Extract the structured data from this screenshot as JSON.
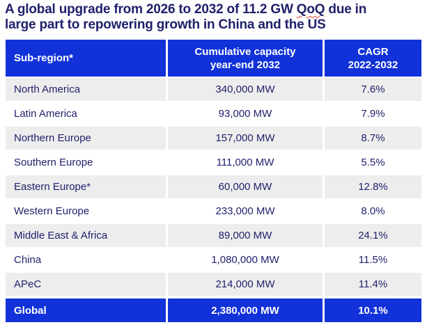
{
  "title": {
    "line1_before": "A global upgrade from 2026 to 2032 of 11.2 GW ",
    "line1_spellchecked_word": "QoQ",
    "line1_after": " due in",
    "line2": "large part to repowering growth in China and the US"
  },
  "table": {
    "headers": [
      {
        "label": "Sub-region*"
      },
      {
        "label": "Cumulative capacity\nyear-end 2032"
      },
      {
        "label": "CAGR\n2022-2032"
      }
    ],
    "rows": [
      {
        "region": "North America",
        "capacity": "340,000 MW",
        "cagr": "7.6%"
      },
      {
        "region": "Latin America",
        "capacity": "93,000 MW",
        "cagr": "7.9%"
      },
      {
        "region": "Northern Europe",
        "capacity": "157,000 MW",
        "cagr": "8.7%"
      },
      {
        "region": "Southern Europe",
        "capacity": "111,000 MW",
        "cagr": "5.5%"
      },
      {
        "region": "Eastern Europe*",
        "capacity": "60,000 MW",
        "cagr": "12.8%"
      },
      {
        "region": "Western Europe",
        "capacity": "233,000 MW",
        "cagr": "8.0%"
      },
      {
        "region": "Middle East & Africa",
        "capacity": "89,000 MW",
        "cagr": "24.1%"
      },
      {
        "region": "China",
        "capacity": "1,080,000 MW",
        "cagr": "11.5%"
      },
      {
        "region": "APeC",
        "capacity": "214,000 MW",
        "cagr": "11.4%"
      }
    ],
    "total_row": {
      "region": "Global",
      "capacity": "2,380,000 MW",
      "cagr": "10.1%"
    }
  },
  "colors": {
    "header_blue": "#1132d9",
    "navy_text": "#1f1f6b",
    "stripe_gray": "#ededed",
    "spellcheck_red": "#e03c31"
  },
  "chart_data": {
    "type": "table",
    "title": "A global upgrade from 2026 to 2032 of 11.2 GW QoQ due in large part to repowering growth in China and the US",
    "columns": [
      "Sub-region*",
      "Cumulative capacity year-end 2032",
      "CAGR 2022-2032"
    ],
    "rows": [
      [
        "North America",
        "340,000 MW",
        "7.6%"
      ],
      [
        "Latin America",
        "93,000 MW",
        "7.9%"
      ],
      [
        "Northern Europe",
        "157,000 MW",
        "8.7%"
      ],
      [
        "Southern Europe",
        "111,000 MW",
        "5.5%"
      ],
      [
        "Eastern Europe*",
        "60,000 MW",
        "12.8%"
      ],
      [
        "Western Europe",
        "233,000 MW",
        "8.0%"
      ],
      [
        "Middle East & Africa",
        "89,000 MW",
        "24.1%"
      ],
      [
        "China",
        "1,080,000 MW",
        "11.5%"
      ],
      [
        "APeC",
        "214,000 MW",
        "11.4%"
      ],
      [
        "Global",
        "2,380,000 MW",
        "10.1%"
      ]
    ],
    "capacity_mw_values": [
      340000,
      93000,
      157000,
      111000,
      60000,
      233000,
      89000,
      1080000,
      214000,
      2380000
    ],
    "cagr_pct_values": [
      7.6,
      7.9,
      8.7,
      5.5,
      12.8,
      8.0,
      24.1,
      11.5,
      11.4,
      10.1
    ]
  }
}
